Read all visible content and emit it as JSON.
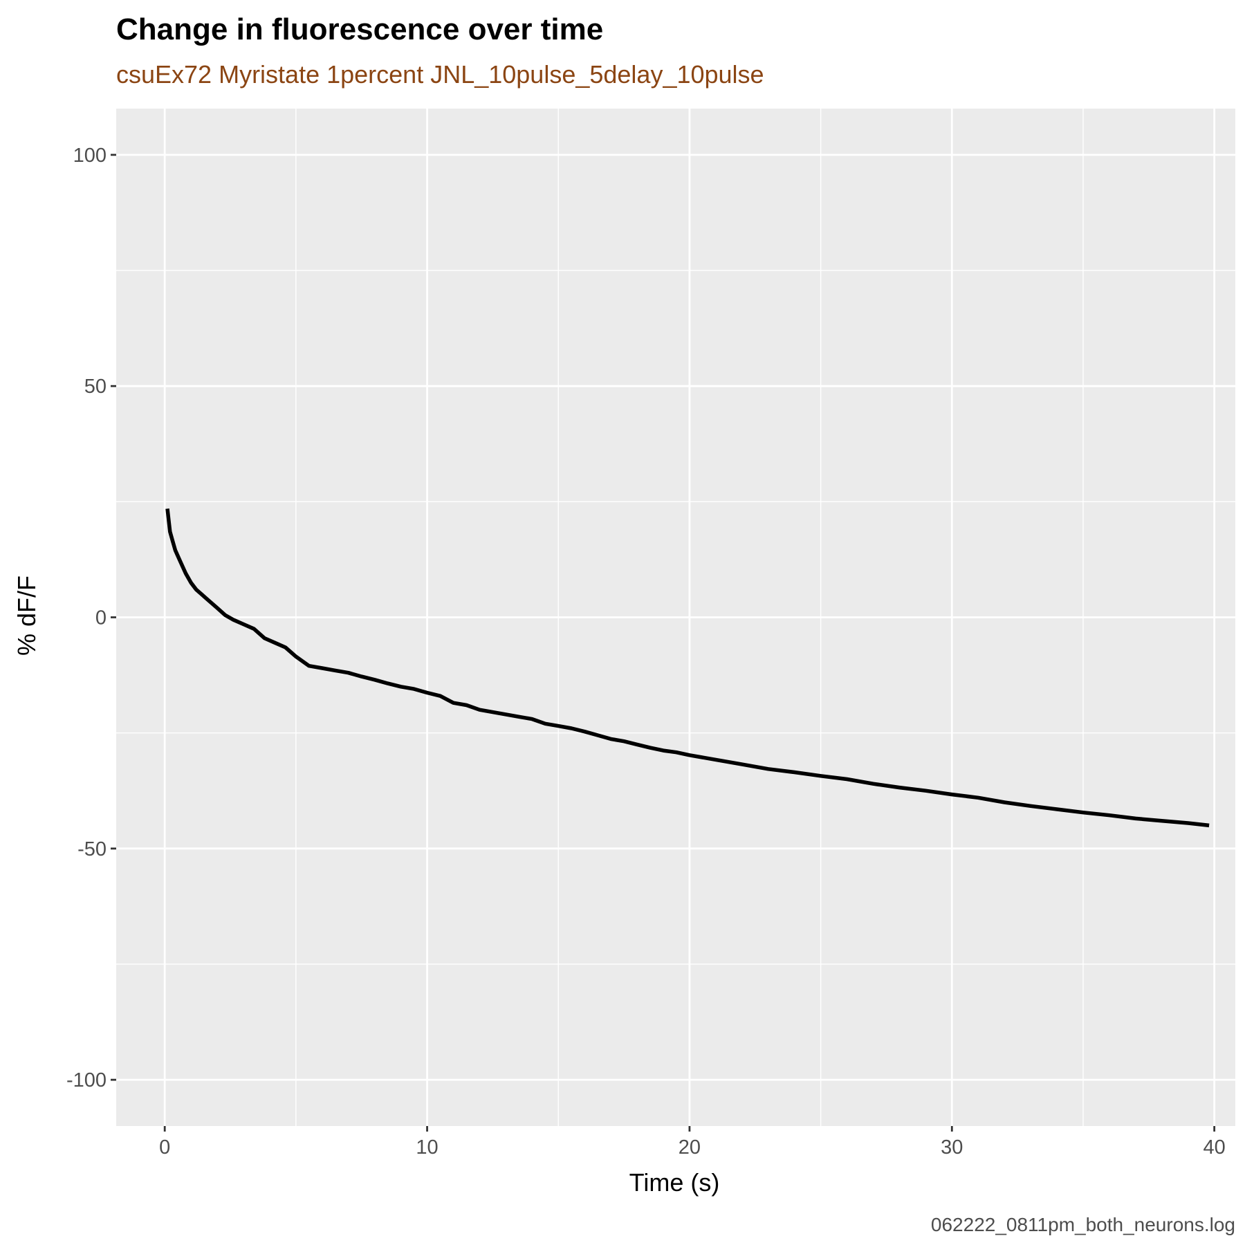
{
  "chart_data": {
    "type": "line",
    "title": "Change in fluorescence over time",
    "subtitle": "csuEx72 Myristate 1percent JNL_10pulse_5delay_10pulse",
    "caption": "062222_0811pm_both_neurons.log",
    "xlabel": "Time (s)",
    "ylabel": "% dF/F",
    "xlim": [
      -1.85,
      40.8
    ],
    "ylim": [
      -110,
      110
    ],
    "x_ticks": [
      0,
      10,
      20,
      30,
      40
    ],
    "y_ticks": [
      -100,
      -50,
      0,
      50,
      100
    ],
    "x_tick_labels": [
      "0",
      "10",
      "20",
      "30",
      "40"
    ],
    "y_tick_labels": [
      "-100",
      "-50",
      "0",
      "50",
      "100"
    ],
    "grid": true,
    "legend": "none",
    "colors": {
      "panel_background": "#ebebeb",
      "grid": "#ffffff",
      "line": "#000000",
      "subtitle": "#8b4513"
    },
    "series": [
      {
        "x": [
          0.1,
          0.2,
          0.3,
          0.4,
          0.6,
          0.8,
          1.0,
          1.2,
          1.4,
          1.6,
          1.8,
          2.0,
          2.3,
          2.6,
          3.0,
          3.4,
          3.8,
          4.2,
          4.6,
          5.0,
          5.5,
          6.0,
          6.5,
          7.0,
          7.5,
          8.0,
          8.5,
          9.0,
          9.5,
          10.0,
          10.5,
          11.0,
          11.5,
          12.0,
          12.5,
          13.0,
          13.5,
          14.0,
          14.5,
          15.0,
          15.5,
          16.0,
          16.5,
          17.0,
          17.5,
          18.0,
          18.5,
          19.0,
          19.5,
          20.0,
          21.0,
          22.0,
          23.0,
          24.0,
          25.0,
          26.0,
          27.0,
          28.0,
          29.0,
          30.0,
          31.0,
          32.0,
          33.0,
          34.0,
          35.0,
          36.0,
          37.0,
          38.0,
          39.0,
          39.8
        ],
        "y": [
          23.5,
          18.5,
          16.5,
          14.5,
          12.0,
          9.5,
          7.5,
          6.0,
          5.0,
          4.0,
          3.0,
          2.0,
          0.5,
          -0.5,
          -1.5,
          -2.5,
          -4.5,
          -5.5,
          -6.5,
          -8.5,
          -10.5,
          -11.0,
          -11.5,
          -12.0,
          -12.8,
          -13.5,
          -14.3,
          -15.0,
          -15.5,
          -16.3,
          -17.0,
          -18.5,
          -19.0,
          -20.0,
          -20.5,
          -21.0,
          -21.5,
          -22.0,
          -23.0,
          -23.5,
          -24.0,
          -24.7,
          -25.5,
          -26.3,
          -26.8,
          -27.5,
          -28.2,
          -28.8,
          -29.2,
          -29.8,
          -30.8,
          -31.8,
          -32.8,
          -33.5,
          -34.3,
          -35.0,
          -36.0,
          -36.8,
          -37.5,
          -38.3,
          -39.0,
          -40.0,
          -40.8,
          -41.5,
          -42.2,
          -42.8,
          -43.5,
          -44.0,
          -44.5,
          -45.0
        ]
      }
    ]
  }
}
